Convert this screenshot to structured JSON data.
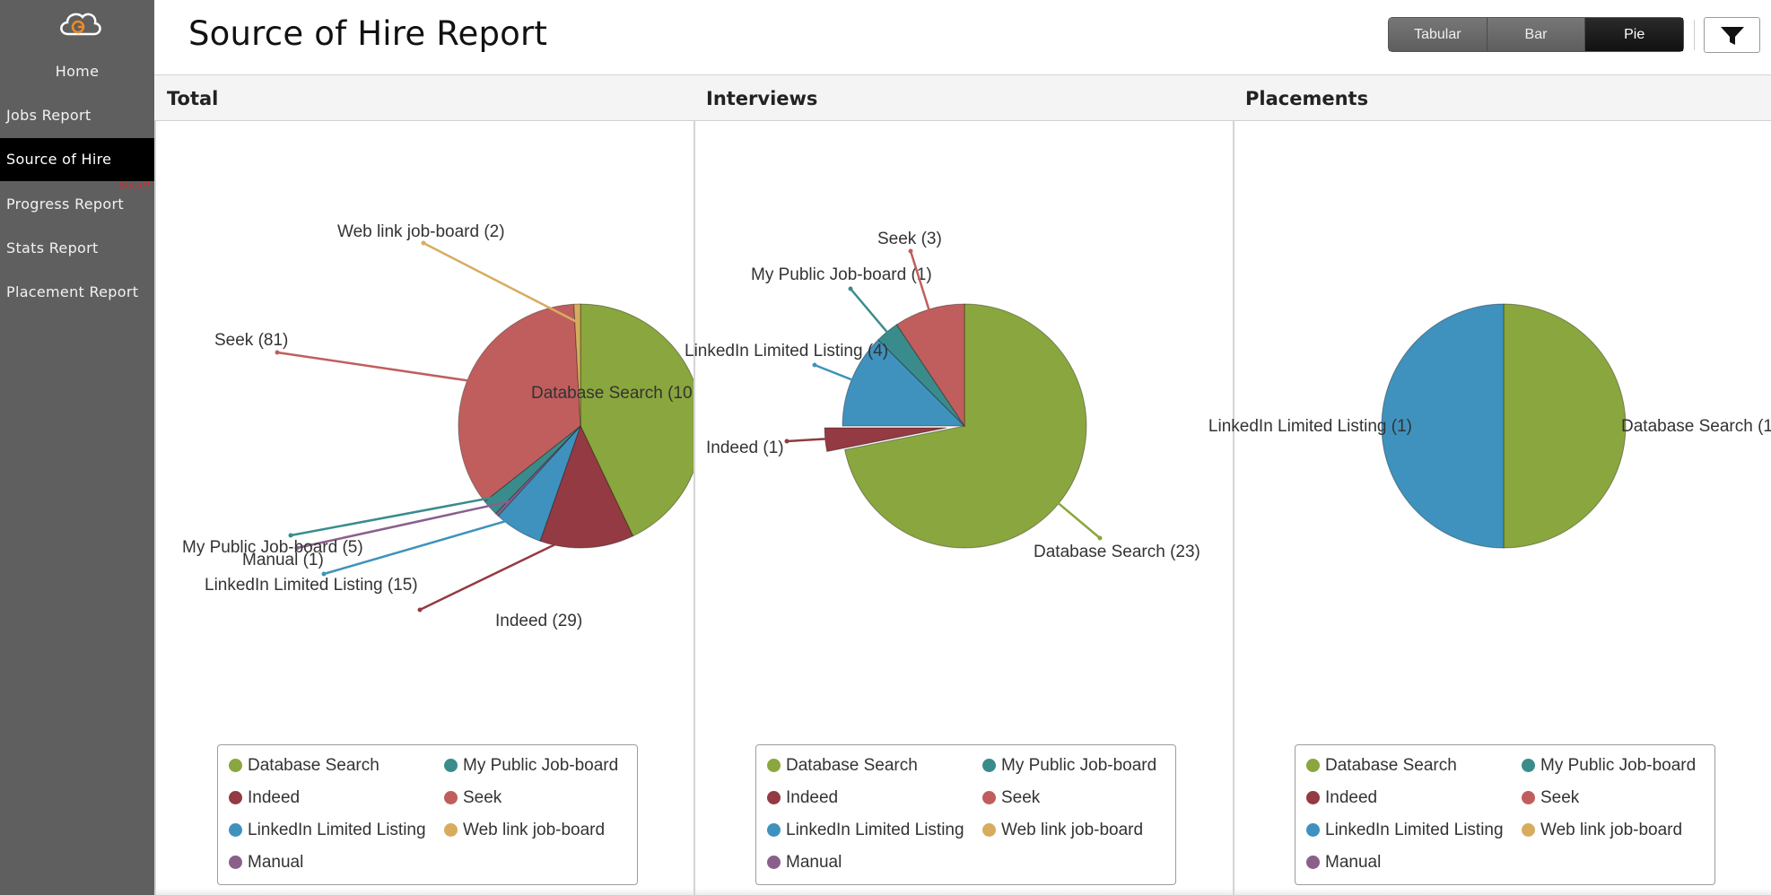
{
  "sidebar": {
    "items": [
      {
        "label": "Home"
      },
      {
        "label": "Jobs Report"
      },
      {
        "label": "Source of Hire"
      },
      {
        "label": "Progress Report",
        "badge": "Beta!!"
      },
      {
        "label": "Stats Report"
      },
      {
        "label": "Placement Report"
      }
    ]
  },
  "header": {
    "title": "Source of Hire Report",
    "view_options": [
      "Tabular",
      "Bar",
      "Pie"
    ],
    "active_view": "Pie",
    "filter_icon": "filter-icon"
  },
  "panels": [
    {
      "title": "Total"
    },
    {
      "title": "Interviews"
    },
    {
      "title": "Placements"
    }
  ],
  "legend_items": [
    {
      "label": "Database Search",
      "color": "#8aa63e"
    },
    {
      "label": "My Public Job-board",
      "color": "#3a8c8c"
    },
    {
      "label": "Indeed",
      "color": "#933a42"
    },
    {
      "label": "Seek",
      "color": "#c05e5e"
    },
    {
      "label": "LinkedIn Limited Listing",
      "color": "#3f92bd"
    },
    {
      "label": "Web link job-board",
      "color": "#d7ac5e"
    },
    {
      "label": "Manual",
      "color": "#8a5f8c"
    }
  ],
  "chart_data": [
    {
      "type": "pie",
      "title": "Total",
      "slices": [
        {
          "label": "Database Search (10",
          "category": "Database Search",
          "value": 100,
          "color": "#8aa63e"
        },
        {
          "label": "Indeed (29)",
          "category": "Indeed",
          "value": 29,
          "color": "#933a42"
        },
        {
          "label": "LinkedIn Limited Listing (15)",
          "category": "LinkedIn Limited Listing",
          "value": 15,
          "color": "#3f92bd"
        },
        {
          "label": "Manual (1)",
          "category": "Manual",
          "value": 1,
          "color": "#8a5f8c"
        },
        {
          "label": "My Public Job-board (5)",
          "category": "My Public Job-board",
          "value": 5,
          "color": "#3a8c8c"
        },
        {
          "label": "Seek (81)",
          "category": "Seek",
          "value": 81,
          "color": "#c05e5e"
        },
        {
          "label": "Web link job-board (2)",
          "category": "Web link job-board",
          "value": 2,
          "color": "#d7ac5e"
        }
      ]
    },
    {
      "type": "pie",
      "title": "Interviews",
      "slices": [
        {
          "label": "Database Search (23)",
          "category": "Database Search",
          "value": 23,
          "color": "#8aa63e"
        },
        {
          "label": "Indeed (1)",
          "category": "Indeed",
          "value": 1,
          "color": "#933a42",
          "exploded": true
        },
        {
          "label": "LinkedIn Limited Listing (4)",
          "category": "LinkedIn Limited Listing",
          "value": 4,
          "color": "#3f92bd"
        },
        {
          "label": "My Public Job-board (1)",
          "category": "My Public Job-board",
          "value": 1,
          "color": "#3a8c8c"
        },
        {
          "label": "Seek (3)",
          "category": "Seek",
          "value": 3,
          "color": "#c05e5e"
        }
      ]
    },
    {
      "type": "pie",
      "title": "Placements",
      "slices": [
        {
          "label": "Database Search (1",
          "category": "Database Search",
          "value": 1,
          "color": "#8aa63e"
        },
        {
          "label": "LinkedIn Limited Listing (1)",
          "category": "LinkedIn Limited Listing",
          "value": 1,
          "color": "#3f92bd"
        }
      ]
    }
  ]
}
